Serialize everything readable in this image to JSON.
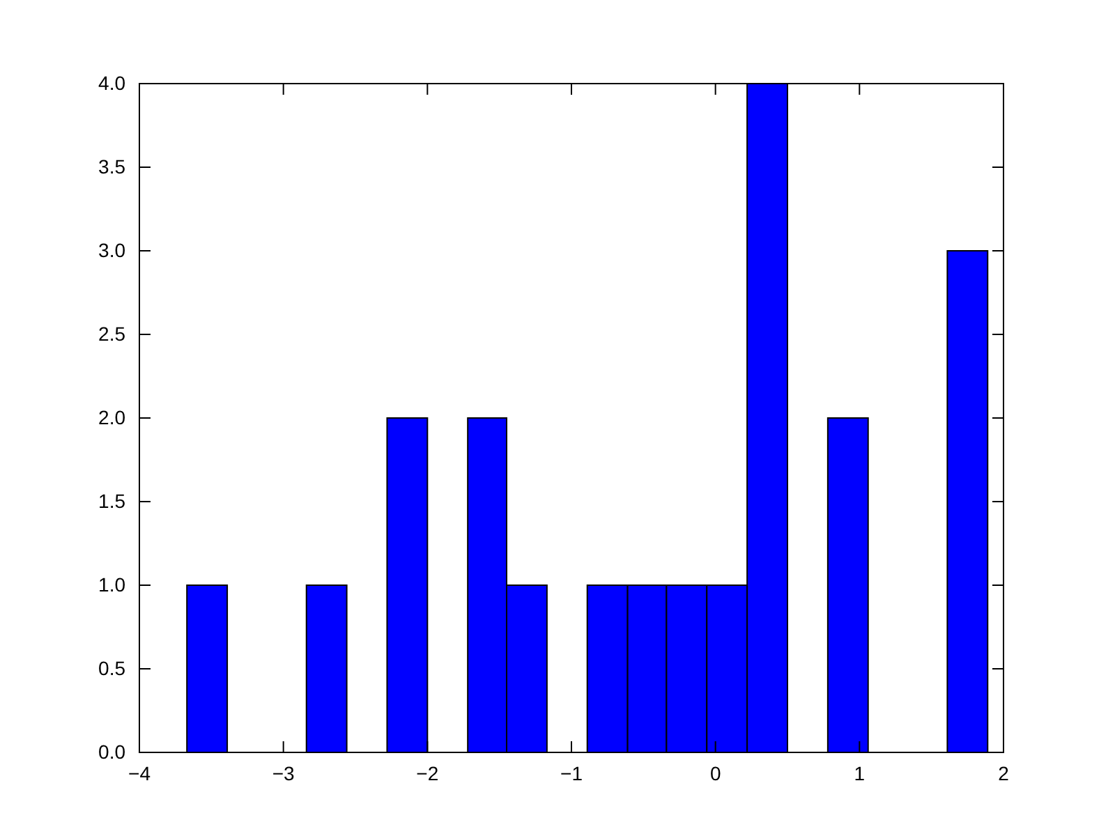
{
  "chart_data": {
    "type": "histogram",
    "bins": [
      -3.67,
      -3.39,
      -2.84,
      -2.56,
      -2.28,
      -2.0,
      -1.72,
      -1.45,
      -1.17,
      -0.89,
      -0.61,
      -0.34,
      -0.06,
      0.22,
      0.5,
      0.78,
      1.06,
      1.61,
      1.89
    ],
    "values": [
      1,
      0,
      1,
      0,
      2,
      0,
      2,
      1,
      0,
      1,
      1,
      1,
      1,
      4,
      0,
      2,
      0,
      3
    ],
    "color": "#0000ff",
    "xlim": [
      -4,
      2
    ],
    "xticks": [
      {
        "value": -4,
        "label": "−4"
      },
      {
        "value": -3,
        "label": "−3"
      },
      {
        "value": -2,
        "label": "−2"
      },
      {
        "value": -1,
        "label": "−1"
      },
      0,
      1,
      2
    ],
    "ylim": [
      0,
      4
    ],
    "yticks": [
      {
        "value": 0,
        "label": "0.0"
      },
      {
        "value": 0.5,
        "label": "0.5"
      },
      {
        "value": 1,
        "label": "1.0"
      },
      {
        "value": 1.5,
        "label": "1.5"
      },
      {
        "value": 2,
        "label": "2.0"
      },
      {
        "value": 2.5,
        "label": "2.5"
      },
      {
        "value": 3,
        "label": "3.0"
      },
      {
        "value": 3.5,
        "label": "3.5"
      },
      {
        "value": 4,
        "label": "4.0"
      }
    ],
    "grid": false
  }
}
